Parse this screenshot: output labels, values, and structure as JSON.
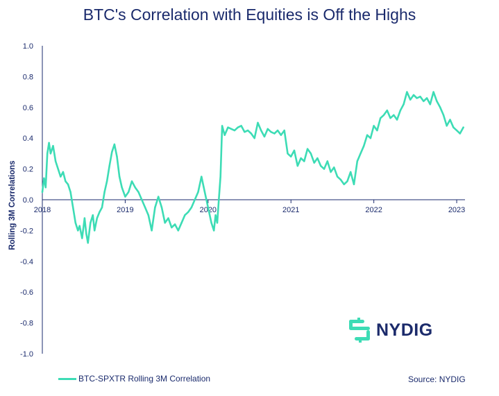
{
  "colors": {
    "line": "#3ddcb5",
    "text": "#1a2a6c",
    "axis": "#1a2a6c"
  },
  "logo": {
    "icon": "nydig-logo-icon",
    "text": "NYDIG"
  },
  "source": "Source: NYDIG",
  "chart_data": {
    "type": "line",
    "title": "BTC's Correlation with Equities is Off the Highs",
    "ylabel": "Rolling 3M Correlations",
    "xlabel": "",
    "ylim": [
      -1.0,
      1.0
    ],
    "xlim": [
      2018.0,
      2023.1
    ],
    "yticks": [
      "1.0",
      "0.8",
      "0.6",
      "0.4",
      "0.2",
      "0.0",
      "-0.2",
      "-0.4",
      "-0.6",
      "-0.8",
      "-1.0"
    ],
    "yticks_values": [
      1.0,
      0.8,
      0.6,
      0.4,
      0.2,
      0.0,
      -0.2,
      -0.4,
      -0.6,
      -0.8,
      -1.0
    ],
    "xticks": [
      "2018",
      "2019",
      "2020",
      "2021",
      "2022",
      "2023"
    ],
    "xticks_values": [
      2018,
      2019,
      2020,
      2021,
      2022,
      2023
    ],
    "grid": false,
    "legend_position": "bottom-left",
    "series": [
      {
        "name": "BTC-SPXTR Rolling 3M Correlation",
        "x": [
          2018.0,
          2018.02,
          2018.04,
          2018.06,
          2018.08,
          2018.1,
          2018.13,
          2018.16,
          2018.19,
          2018.22,
          2018.25,
          2018.28,
          2018.31,
          2018.34,
          2018.37,
          2018.4,
          2018.43,
          2018.45,
          2018.48,
          2018.51,
          2018.53,
          2018.55,
          2018.58,
          2018.61,
          2018.63,
          2018.66,
          2018.69,
          2018.72,
          2018.75,
          2018.78,
          2018.81,
          2018.84,
          2018.87,
          2018.9,
          2018.93,
          2018.96,
          2019.0,
          2019.04,
          2019.08,
          2019.12,
          2019.16,
          2019.2,
          2019.24,
          2019.28,
          2019.32,
          2019.36,
          2019.4,
          2019.44,
          2019.48,
          2019.52,
          2019.56,
          2019.6,
          2019.64,
          2019.68,
          2019.72,
          2019.76,
          2019.8,
          2019.84,
          2019.88,
          2019.92,
          2019.96,
          2020.0,
          2020.04,
          2020.07,
          2020.09,
          2020.11,
          2020.13,
          2020.15,
          2020.17,
          2020.2,
          2020.24,
          2020.28,
          2020.32,
          2020.36,
          2020.4,
          2020.44,
          2020.48,
          2020.52,
          2020.56,
          2020.6,
          2020.64,
          2020.68,
          2020.72,
          2020.76,
          2020.8,
          2020.84,
          2020.88,
          2020.92,
          2020.96,
          2021.0,
          2021.04,
          2021.08,
          2021.12,
          2021.16,
          2021.2,
          2021.24,
          2021.28,
          2021.32,
          2021.36,
          2021.4,
          2021.44,
          2021.48,
          2021.52,
          2021.56,
          2021.6,
          2021.64,
          2021.68,
          2021.72,
          2021.76,
          2021.8,
          2021.84,
          2021.88,
          2021.92,
          2021.96,
          2022.0,
          2022.04,
          2022.08,
          2022.12,
          2022.16,
          2022.2,
          2022.24,
          2022.28,
          2022.32,
          2022.36,
          2022.4,
          2022.44,
          2022.48,
          2022.52,
          2022.56,
          2022.6,
          2022.64,
          2022.68,
          2022.72,
          2022.76,
          2022.8,
          2022.84,
          2022.88,
          2022.92,
          2022.96,
          2023.0,
          2023.04,
          2023.08
        ],
        "values": [
          0.05,
          0.14,
          0.08,
          0.3,
          0.37,
          0.3,
          0.35,
          0.25,
          0.2,
          0.15,
          0.18,
          0.12,
          0.1,
          0.05,
          -0.05,
          -0.15,
          -0.2,
          -0.17,
          -0.25,
          -0.12,
          -0.22,
          -0.28,
          -0.15,
          -0.1,
          -0.2,
          -0.12,
          -0.08,
          -0.05,
          0.05,
          0.12,
          0.22,
          0.31,
          0.36,
          0.28,
          0.15,
          0.08,
          0.02,
          0.05,
          0.12,
          0.08,
          0.05,
          0.0,
          -0.05,
          -0.1,
          -0.2,
          -0.05,
          0.02,
          -0.05,
          -0.15,
          -0.12,
          -0.18,
          -0.16,
          -0.2,
          -0.15,
          -0.1,
          -0.08,
          -0.05,
          0.0,
          0.05,
          0.15,
          0.05,
          -0.05,
          -0.15,
          -0.2,
          -0.1,
          -0.15,
          0.0,
          0.15,
          0.48,
          0.42,
          0.47,
          0.46,
          0.45,
          0.47,
          0.48,
          0.44,
          0.45,
          0.43,
          0.4,
          0.5,
          0.45,
          0.41,
          0.46,
          0.44,
          0.43,
          0.45,
          0.42,
          0.45,
          0.3,
          0.28,
          0.32,
          0.22,
          0.27,
          0.25,
          0.33,
          0.3,
          0.24,
          0.27,
          0.22,
          0.2,
          0.25,
          0.18,
          0.21,
          0.15,
          0.13,
          0.1,
          0.12,
          0.18,
          0.1,
          0.25,
          0.3,
          0.35,
          0.42,
          0.4,
          0.48,
          0.45,
          0.53,
          0.55,
          0.58,
          0.53,
          0.55,
          0.52,
          0.58,
          0.62,
          0.7,
          0.65,
          0.68,
          0.66,
          0.67,
          0.64,
          0.66,
          0.62,
          0.7,
          0.64,
          0.6,
          0.55,
          0.48,
          0.52,
          0.47,
          0.45,
          0.43,
          0.47
        ]
      }
    ]
  }
}
